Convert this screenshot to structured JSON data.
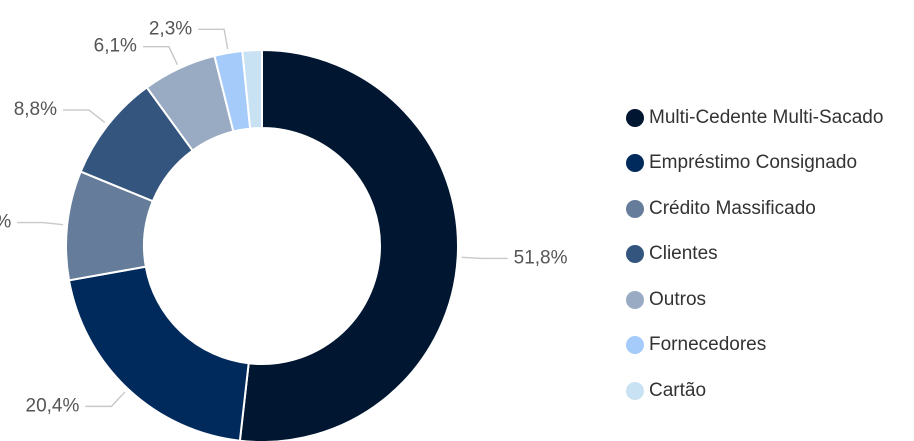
{
  "chart_data": {
    "type": "pie",
    "donut": true,
    "categories": [
      "Multi-Cedente Multi-Sacado",
      "Empréstimo Consignado",
      "Crédito Massificado",
      "Clientes",
      "Outros",
      "Fornecedores",
      "Cartão"
    ],
    "values": [
      51.8,
      20.4,
      9.0,
      8.8,
      6.1,
      2.3,
      1.6
    ],
    "value_labels": [
      "51,8%",
      "20,4%",
      "%",
      "8,8%",
      "6,1%",
      "2,3%",
      ""
    ],
    "colors": [
      "#011631",
      "#002a5c",
      "#657d9b",
      "#34557e",
      "#98abc3",
      "#a4cbf9",
      "#c8e2f3"
    ],
    "legend_position": "right"
  }
}
